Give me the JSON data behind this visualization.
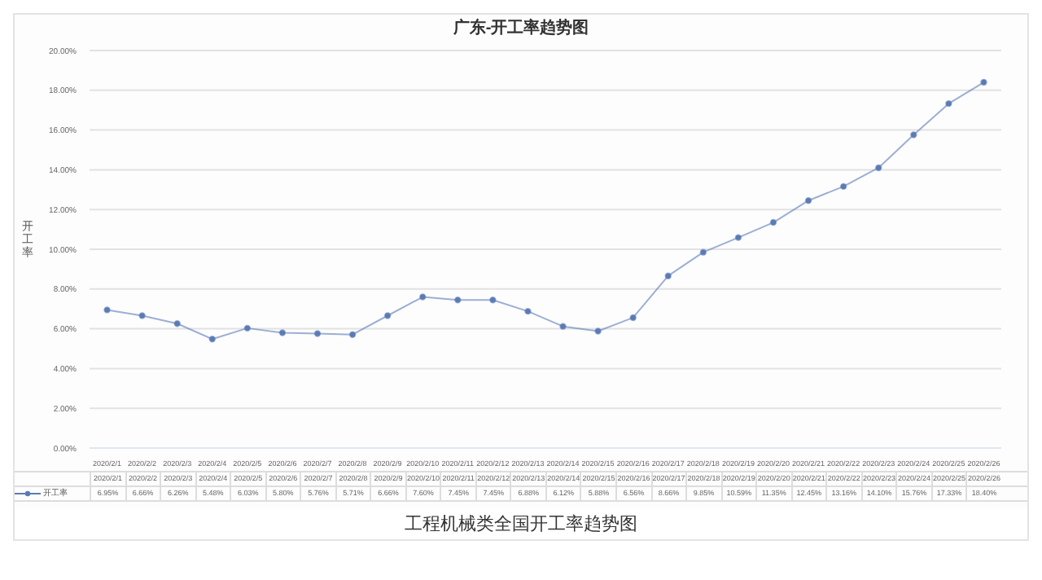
{
  "chart_data": {
    "type": "line",
    "title": "广东-开工率趋势图",
    "ylabel": "开工率",
    "annotations": [
      "工程机械类全国开工率趋势图"
    ],
    "categories": [
      "2020/2/1",
      "2020/2/2",
      "2020/2/3",
      "2020/2/4",
      "2020/2/5",
      "2020/2/6",
      "2020/2/7",
      "2020/2/8",
      "2020/2/9",
      "2020/2/10",
      "2020/2/11",
      "2020/2/12",
      "2020/2/13",
      "2020/2/14",
      "2020/2/15",
      "2020/2/16",
      "2020/2/17",
      "2020/2/18",
      "2020/2/19",
      "2020/2/20",
      "2020/2/21",
      "2020/2/22",
      "2020/2/23",
      "2020/2/24",
      "2020/2/25",
      "2020/2/26"
    ],
    "series": [
      {
        "name": "开工率",
        "color": "#5b7bb5",
        "values": [
          6.95,
          6.66,
          6.26,
          5.48,
          6.03,
          5.8,
          5.76,
          5.71,
          6.66,
          7.6,
          7.45,
          7.45,
          6.88,
          6.12,
          5.88,
          6.56,
          8.66,
          9.85,
          10.59,
          11.35,
          12.45,
          13.16,
          14.1,
          15.76,
          17.33,
          18.4
        ],
        "value_labels": [
          "6.95%",
          "6.66%",
          "6.26%",
          "5.48%",
          "6.03%",
          "5.80%",
          "5.76%",
          "5.71%",
          "6.66%",
          "7.60%",
          "7.45%",
          "7.45%",
          "6.88%",
          "6.12%",
          "5.88%",
          "6.56%",
          "8.66%",
          "9.85%",
          "10.59%",
          "11.35%",
          "12.45%",
          "13.16%",
          "14.10%",
          "15.76%",
          "17.33%",
          "18.40%"
        ]
      }
    ],
    "ylim": [
      0,
      20
    ],
    "yticks": [
      {
        "value": 0,
        "label": "0.00%"
      },
      {
        "value": 2,
        "label": "2.00%"
      },
      {
        "value": 4,
        "label": "4.00%"
      },
      {
        "value": 6,
        "label": "6.00%"
      },
      {
        "value": 8,
        "label": "8.00%"
      },
      {
        "value": 10,
        "label": "10.00%"
      },
      {
        "value": 12,
        "label": "12.00%"
      },
      {
        "value": 14,
        "label": "14.00%"
      },
      {
        "value": 16,
        "label": "16.00%"
      },
      {
        "value": 18,
        "label": "18.00%"
      },
      {
        "value": 20,
        "label": "20.00%"
      }
    ],
    "grid": "y",
    "legend": "bottom left",
    "marker": "circle",
    "line_style": "solid"
  }
}
